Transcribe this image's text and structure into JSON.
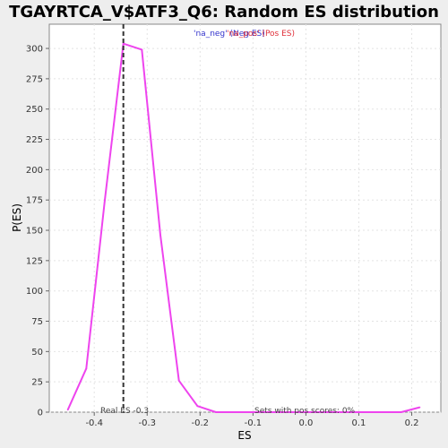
{
  "chart_data": {
    "type": "line",
    "title": "TGAYRTCA_V$ATF3_Q6: Random ES distribution",
    "xlabel": "ES",
    "ylabel": "P(ES)",
    "xlim": [
      -0.485,
      0.255
    ],
    "ylim": [
      0,
      320
    ],
    "xticks": [
      -0.4,
      -0.3,
      -0.2,
      -0.1,
      0.0,
      0.1,
      0.2
    ],
    "xtick_labels": [
      "-0.4",
      "-0.3",
      "-0.2",
      "-0.1",
      "0.0",
      "0.1",
      "0.2"
    ],
    "yticks": [
      0,
      25,
      50,
      75,
      100,
      125,
      150,
      175,
      200,
      225,
      250,
      275,
      300
    ],
    "ytick_labels": [
      "0",
      "25",
      "50",
      "75",
      "100",
      "125",
      "150",
      "175",
      "200",
      "225",
      "250",
      "275",
      "300"
    ],
    "grid": true,
    "legend": {
      "placement": "top-center",
      "entries": [
        "'na_neg' (Neg ES)",
        "'na_pos' (Pos ES)"
      ]
    },
    "series": [
      {
        "color": "#ee44ee",
        "x": [
          -0.45,
          -0.415,
          -0.38,
          -0.345,
          -0.31,
          -0.275,
          -0.24,
          -0.205,
          -0.17,
          -0.135,
          -0.1,
          -0.065,
          -0.03,
          0.005,
          0.04,
          0.075,
          0.11,
          0.145,
          0.18,
          0.215
        ],
        "y": [
          2,
          36,
          175,
          304,
          299,
          146,
          26,
          5,
          0,
          0,
          0,
          0,
          0,
          0,
          0,
          0,
          0,
          0,
          0,
          4
        ]
      }
    ],
    "real_es": {
      "x": -0.345,
      "color": "#333333",
      "label": "Real ES -0.3"
    },
    "annotations": {
      "pos_scores": "Sets with pos scores: 0%"
    }
  }
}
